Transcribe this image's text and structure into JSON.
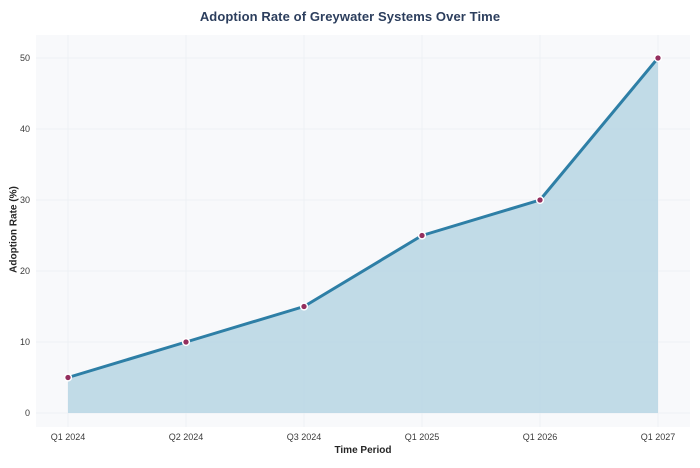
{
  "chart_data": {
    "type": "area",
    "title": "Adoption Rate of Greywater Systems Over Time",
    "xlabel": "Time Period",
    "ylabel": "Adoption Rate (%)",
    "categories": [
      "Q1 2024",
      "Q2 2024",
      "Q3 2024",
      "Q1 2025",
      "Q1 2026",
      "Q1 2027"
    ],
    "values": [
      5,
      10,
      15,
      25,
      30,
      50
    ],
    "yticks": [
      0,
      10,
      20,
      30,
      40,
      50
    ],
    "ylim": [
      0,
      53
    ],
    "grid": true,
    "legend": "none",
    "markers": true,
    "colors": {
      "line": "#2e7fa6",
      "area_fill": "#bcd8e5",
      "marker": "#942f5e",
      "marker_edge": "#ffffff",
      "plot_background": "#f8f9fb",
      "grid": "#eef1f5",
      "title": "#2c3e5d",
      "axis_label": "#262626",
      "tick_label": "#3b3b3b",
      "figure_background": "#ffffff"
    }
  }
}
